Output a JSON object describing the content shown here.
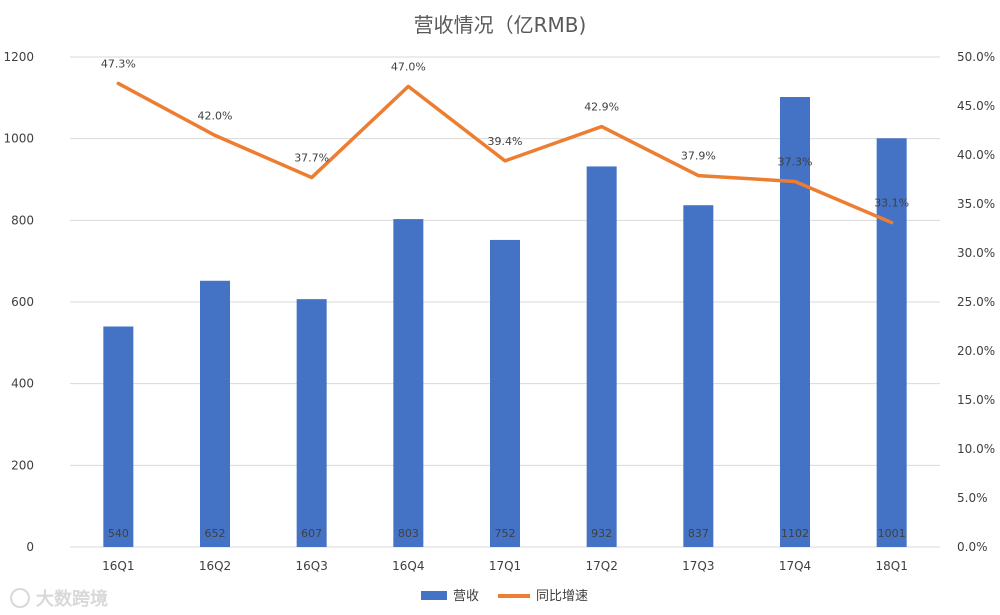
{
  "chart_data": {
    "type": "bar",
    "title": "营收情况（亿RMB)",
    "categories": [
      "16Q1",
      "16Q2",
      "16Q3",
      "16Q4",
      "17Q1",
      "17Q2",
      "17Q3",
      "17Q4",
      "18Q1"
    ],
    "series": [
      {
        "name": "营收",
        "type": "bar",
        "axis": "left",
        "values": [
          540,
          652,
          607,
          803,
          752,
          932,
          837,
          1102,
          1001
        ],
        "labels": [
          "540",
          "652",
          "607",
          "803",
          "752",
          "932",
          "837",
          "1102",
          "1001"
        ]
      },
      {
        "name": "同比增速",
        "type": "line",
        "axis": "right",
        "values": [
          47.3,
          42.0,
          37.7,
          47.0,
          39.4,
          42.9,
          37.9,
          37.3,
          33.1
        ],
        "labels": [
          "47.3%",
          "42.0%",
          "37.7%",
          "47.0%",
          "39.4%",
          "42.9%",
          "37.9%",
          "37.3%",
          "33.1%"
        ]
      }
    ],
    "left_axis": {
      "ylim": [
        0,
        1200
      ],
      "ticks": [
        0,
        200,
        400,
        600,
        800,
        1000,
        1200
      ],
      "tick_labels": [
        "0",
        "200",
        "400",
        "600",
        "800",
        "1000",
        "1200"
      ]
    },
    "right_axis": {
      "ylim": [
        0,
        50
      ],
      "ticks": [
        0,
        5,
        10,
        15,
        20,
        25,
        30,
        35,
        40,
        45,
        50
      ],
      "tick_labels": [
        "0.0%",
        "5.0%",
        "10.0%",
        "15.0%",
        "20.0%",
        "25.0%",
        "30.0%",
        "35.0%",
        "40.0%",
        "45.0%",
        "50.0%"
      ]
    },
    "grid": true,
    "legend_position": "bottom",
    "colors": {
      "bar": "#4472C4",
      "line": "#ED7D31",
      "grid": "#D9D9D9"
    },
    "watermark": "大数跨境"
  }
}
